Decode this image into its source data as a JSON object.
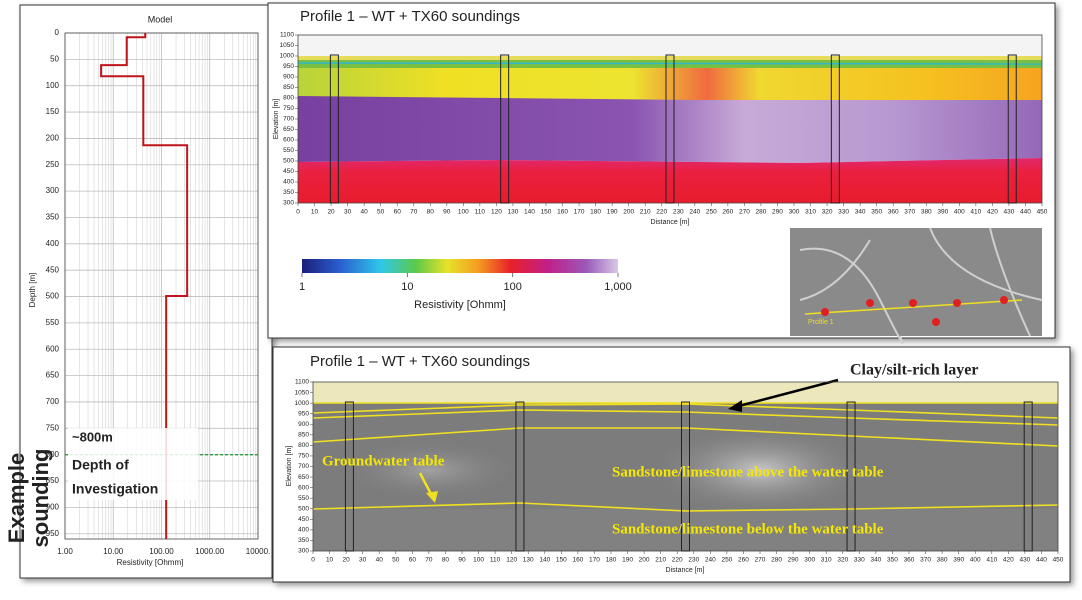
{
  "chart_data": [
    {
      "type": "line",
      "title": "Model",
      "xlabel": "Resistivity [Ohmm]",
      "ylabel": "Depth [m]",
      "xscale": "log",
      "xlim": [
        1,
        10000
      ],
      "xticks": [
        {
          "value": 1,
          "label": "1.00"
        },
        {
          "value": 10,
          "label": "10.00"
        },
        {
          "value": 100,
          "label": "100.00"
        },
        {
          "value": 1000,
          "label": "1000.00"
        },
        {
          "value": 10000,
          "label": "10000."
        }
      ],
      "ylim": [
        0,
        960
      ],
      "y_inverted": true,
      "yticks": [
        0,
        50,
        100,
        150,
        200,
        250,
        300,
        350,
        400,
        450,
        500,
        550,
        600,
        650,
        700,
        750,
        800,
        850,
        900,
        950
      ],
      "grid": true,
      "minor_grid": true,
      "color": "#c0141c",
      "x": [
        46,
        46,
        19,
        19,
        5.6,
        5.6,
        42,
        42,
        340,
        340,
        125,
        125
      ],
      "values": [
        0,
        8,
        8,
        61,
        61,
        82,
        82,
        213,
        213,
        499,
        499,
        960
      ],
      "reference_line": 800,
      "reference_color": "#2e9e3a",
      "annotations": [
        "~800m",
        "Depth of",
        "Investigation"
      ],
      "side_label": [
        "Example",
        "sounding"
      ]
    },
    {
      "type": "section",
      "title": "Profile 1 – WT + TX60 soundings",
      "xlabel": "Distance [m]",
      "ylabel": "Elevation [m]",
      "xlim": [
        0,
        450
      ],
      "xticks": [
        0,
        10,
        20,
        30,
        40,
        50,
        60,
        70,
        80,
        90,
        100,
        110,
        120,
        130,
        140,
        150,
        160,
        170,
        180,
        190,
        200,
        210,
        220,
        230,
        240,
        250,
        260,
        270,
        280,
        290,
        300,
        310,
        320,
        330,
        340,
        350,
        360,
        370,
        380,
        390,
        400,
        410,
        420,
        430,
        440,
        450
      ],
      "ylim": [
        300,
        1100
      ],
      "yticks": [
        300,
        350,
        400,
        450,
        500,
        550,
        600,
        650,
        700,
        750,
        800,
        850,
        900,
        950,
        1000,
        1050,
        1100
      ],
      "soundings": [
        22,
        125,
        225,
        325,
        432
      ],
      "colorbar": {
        "label": "Resistivity [Ohmm]",
        "scale": "log",
        "lim": [
          1,
          1000
        ],
        "ticks": [
          1,
          10,
          100,
          {
            "value": 1000,
            "label": "1,000"
          }
        ]
      },
      "map_label": "Profile 1"
    },
    {
      "type": "section",
      "title": "Profile 1 – WT + TX60 soundings",
      "xlabel": "Distance [m]",
      "ylabel": "Elevation [m]",
      "xlim": [
        0,
        450
      ],
      "xticks": [
        0,
        10,
        20,
        30,
        40,
        50,
        60,
        70,
        80,
        90,
        100,
        110,
        120,
        130,
        140,
        150,
        160,
        170,
        180,
        190,
        200,
        210,
        220,
        230,
        240,
        250,
        260,
        270,
        280,
        290,
        300,
        310,
        320,
        330,
        340,
        350,
        360,
        370,
        380,
        390,
        400,
        410,
        420,
        430,
        440,
        450
      ],
      "ylim": [
        300,
        1100
      ],
      "yticks": [
        300,
        350,
        400,
        450,
        500,
        550,
        600,
        650,
        700,
        750,
        800,
        850,
        900,
        950,
        1000,
        1050,
        1100
      ],
      "soundings": [
        22,
        125,
        225,
        325,
        432
      ],
      "annotations": [
        "Clay/silt-rich layer",
        "Groundwater table",
        "Sandstone/limestone above the water table",
        "Sandstone/limestone below the water table"
      ]
    }
  ]
}
